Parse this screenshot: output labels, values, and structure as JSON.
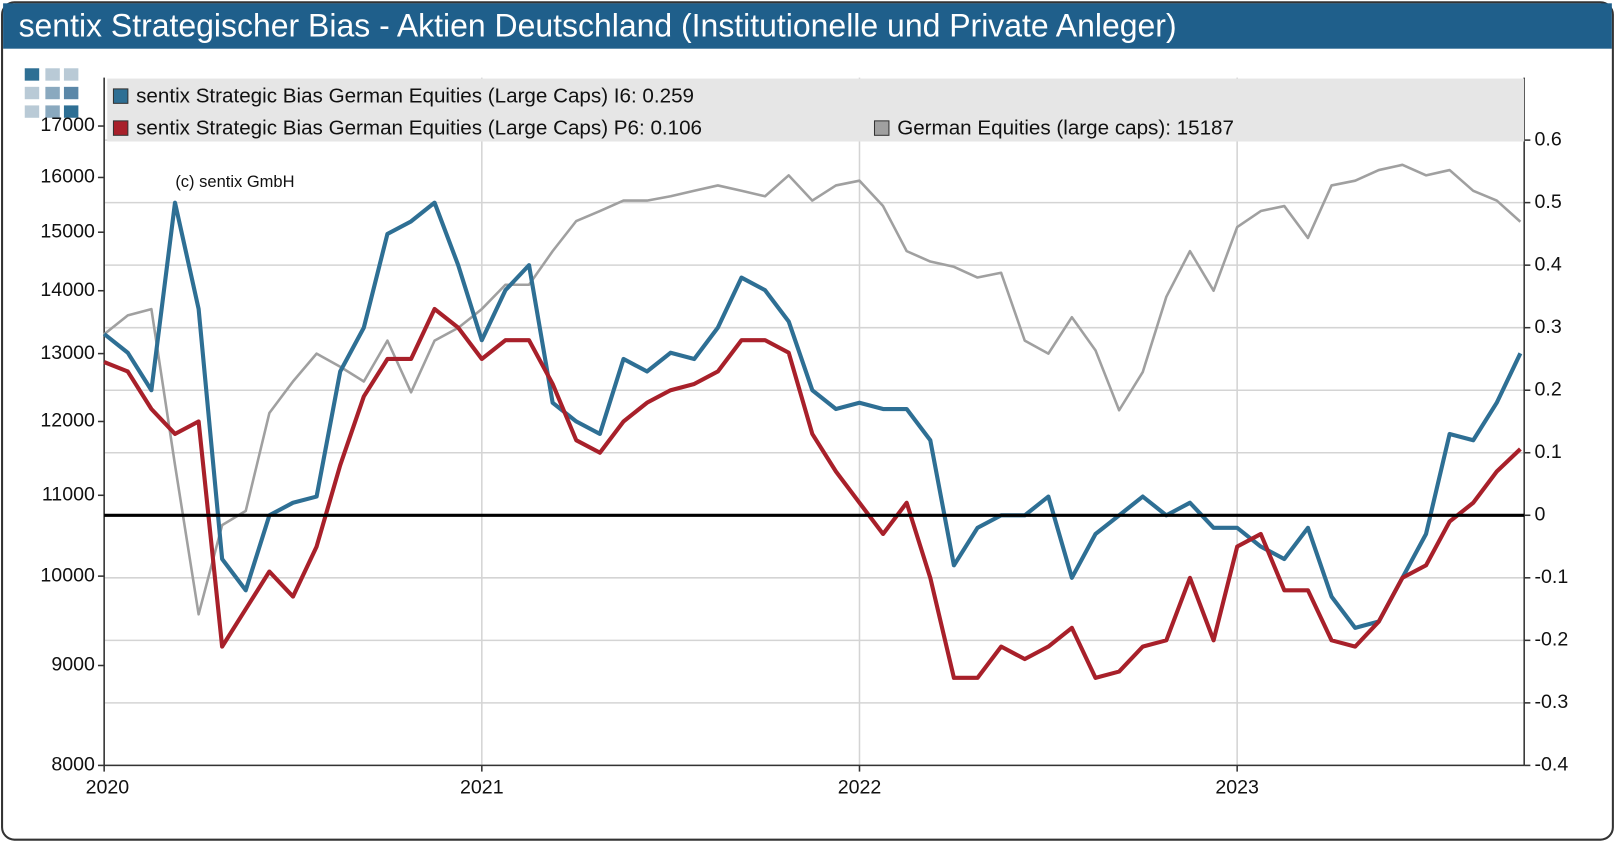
{
  "chart_data": {
    "type": "line",
    "title": "sentix Strategischer Bias - Aktien Deutschland (Institutionelle und Private Anleger)",
    "annotation": "(c) sentix GmbH",
    "x": [
      2020,
      2020.0625,
      2020.125,
      2020.1875,
      2020.25,
      2020.3125,
      2020.375,
      2020.4375,
      2020.5,
      2020.5625,
      2020.625,
      2020.6875,
      2020.75,
      2020.8125,
      2020.875,
      2020.9375,
      2021,
      2021.0625,
      2021.125,
      2021.1875,
      2021.25,
      2021.3125,
      2021.375,
      2021.4375,
      2021.5,
      2021.5625,
      2021.625,
      2021.6875,
      2021.75,
      2021.8125,
      2021.875,
      2021.9375,
      2022,
      2022.0625,
      2022.125,
      2022.1875,
      2022.25,
      2022.3125,
      2022.375,
      2022.4375,
      2022.5,
      2022.5625,
      2022.625,
      2022.6875,
      2022.75,
      2022.8125,
      2022.875,
      2022.9375,
      2023,
      2023.0625,
      2023.125,
      2023.1875,
      2023.25,
      2023.3125,
      2023.375,
      2023.4375,
      2023.5,
      2023.5625,
      2023.625,
      2023.6875,
      2023.75
    ],
    "xlim": [
      2020,
      2023.76
    ],
    "xticks": [
      2020,
      2021,
      2022,
      2023
    ],
    "ylim": [
      8000,
      18000
    ],
    "yticks": [
      8000,
      9000,
      10000,
      11000,
      12000,
      13000,
      14000,
      15000,
      16000,
      17000
    ],
    "log_scale": true,
    "y2lim": [
      -0.4,
      0.7
    ],
    "y2ticks": [
      -0.4,
      -0.3,
      -0.2,
      -0.1,
      0,
      0.1,
      0.2,
      0.3,
      0.4,
      0.5,
      0.6
    ],
    "grid": true,
    "reference_line": {
      "axis": "y2",
      "value": 0
    },
    "legend": "top",
    "series": [
      {
        "name": "sentix Strategic Bias German Equities (Large Caps) I6: 0.259",
        "color": "#2e6f94",
        "axis": "y2",
        "values": [
          0.29,
          0.26,
          0.2,
          0.5,
          0.33,
          -0.07,
          -0.12,
          0,
          0.02,
          0.03,
          0.23,
          0.3,
          0.45,
          0.47,
          0.5,
          0.4,
          0.28,
          0.36,
          0.4,
          0.18,
          0.15,
          0.13,
          0.25,
          0.23,
          0.26,
          0.25,
          0.3,
          0.38,
          0.36,
          0.31,
          0.2,
          0.17,
          0.18,
          0.17,
          0.17,
          0.12,
          -0.08,
          -0.02,
          0,
          0,
          0.03,
          -0.1,
          -0.03,
          0,
          0.03,
          0,
          0.02,
          -0.02,
          -0.02,
          -0.05,
          -0.07,
          -0.02,
          -0.13,
          -0.18,
          -0.17,
          -0.1,
          -0.03,
          0.13,
          0.12,
          0.18,
          0.259
        ]
      },
      {
        "name": "sentix Strategic Bias German Equities (Large Caps) P6: 0.106",
        "color": "#a8202a",
        "axis": "y2",
        "values": [
          0.245,
          0.23,
          0.17,
          0.13,
          0.15,
          -0.21,
          -0.15,
          -0.09,
          -0.13,
          -0.05,
          0.08,
          0.19,
          0.25,
          0.25,
          0.33,
          0.3,
          0.25,
          0.28,
          0.28,
          0.21,
          0.12,
          0.1,
          0.15,
          0.18,
          0.2,
          0.21,
          0.23,
          0.28,
          0.28,
          0.26,
          0.13,
          0.07,
          0.02,
          -0.03,
          0.02,
          -0.1,
          -0.26,
          -0.26,
          -0.21,
          -0.23,
          -0.21,
          -0.18,
          -0.26,
          -0.25,
          -0.21,
          -0.2,
          -0.1,
          -0.2,
          -0.05,
          -0.03,
          -0.12,
          -0.12,
          -0.2,
          -0.21,
          -0.17,
          -0.1,
          -0.08,
          -0.01,
          0.02,
          0.07,
          0.106
        ]
      },
      {
        "name": "German Equities (large caps): 15187",
        "color": "#a0a0a0",
        "axis": "y",
        "values": [
          13300,
          13600,
          13700,
          11400,
          9560,
          10620,
          10800,
          12120,
          12580,
          13000,
          12800,
          12580,
          13200,
          12420,
          13200,
          13400,
          13700,
          14100,
          14100,
          14670,
          15200,
          15380,
          15570,
          15570,
          15650,
          15750,
          15850,
          15750,
          15650,
          16040,
          15570,
          15850,
          15940,
          15470,
          14670,
          14490,
          14400,
          14220,
          14300,
          13200,
          13000,
          13570,
          13050,
          12160,
          12720,
          13900,
          14670,
          14000,
          15090,
          15380,
          15470,
          14900,
          15850,
          15940,
          16140,
          16240,
          16040,
          16140,
          15750,
          15570,
          15187
        ]
      }
    ]
  }
}
